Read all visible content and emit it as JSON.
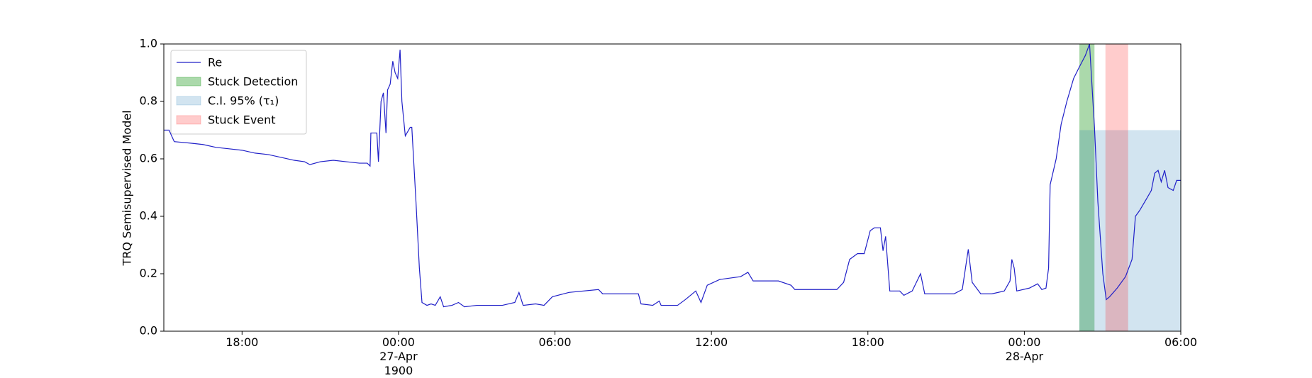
{
  "chart_data": {
    "type": "line",
    "ylabel": "TRQ Semisupervised Model",
    "xlim": [
      -9,
      30
    ],
    "ylim": [
      0,
      1
    ],
    "xticks": [
      {
        "value": -6,
        "label": "18:00"
      },
      {
        "value": 0,
        "label": "00:00\n27-Apr\n1900"
      },
      {
        "value": 6,
        "label": "06:00"
      },
      {
        "value": 12,
        "label": "12:00"
      },
      {
        "value": 18,
        "label": "18:00"
      },
      {
        "value": 24,
        "label": "00:00\n28-Apr"
      },
      {
        "value": 30,
        "label": "06:00"
      }
    ],
    "yticks": [
      {
        "value": 0,
        "label": "0.0"
      },
      {
        "value": 0.2,
        "label": "0.2"
      },
      {
        "value": 0.4,
        "label": "0.4"
      },
      {
        "value": 0.6,
        "label": "0.6"
      },
      {
        "value": 0.8,
        "label": "0.8"
      },
      {
        "value": 1,
        "label": "1.0"
      }
    ],
    "legend": "upper left",
    "series": [
      {
        "name": "Re",
        "color": "#2020c8",
        "x": [
          -9,
          -8.8,
          -8.6,
          -8,
          -7.5,
          -7,
          -6.5,
          -6,
          -5.5,
          -5,
          -4.5,
          -4,
          -3.6,
          -3.4,
          -3,
          -2.5,
          -2,
          -1.5,
          -1.2,
          -1.09,
          -1.06,
          -0.83,
          -0.77,
          -0.67,
          -0.58,
          -0.48,
          -0.42,
          -0.32,
          -0.22,
          -0.13,
          -0.03,
          0.06,
          0.13,
          0.26,
          0.45,
          0.51,
          0.67,
          0.8,
          0.9,
          1.09,
          1.25,
          1.41,
          1.6,
          1.73,
          2.05,
          2.3,
          2.53,
          3.0,
          3.98,
          4.46,
          4.62,
          4.78,
          5.26,
          5.58,
          5.9,
          6.54,
          7.67,
          7.83,
          9.2,
          9.3,
          9.75,
          10.0,
          10.07,
          10.7,
          11.0,
          11.4,
          11.6,
          11.84,
          12.32,
          13.12,
          13.4,
          13.6,
          14.57,
          15.05,
          15.2,
          16.81,
          17.07,
          17.3,
          17.6,
          17.86,
          18.09,
          18.25,
          18.48,
          18.58,
          18.68,
          18.84,
          19.06,
          19.22,
          19.38,
          19.7,
          19.86,
          20.02,
          20.18,
          20.66,
          21.3,
          21.62,
          21.85,
          22.0,
          22.33,
          22.75,
          23.23,
          23.45,
          23.52,
          23.61,
          23.71,
          24.19,
          24.51,
          24.67,
          24.83,
          24.93,
          24.99,
          25.22,
          25.41,
          25.63,
          25.89,
          26.11,
          26.34,
          26.5,
          26.63,
          26.69,
          26.82,
          27.01,
          27.14,
          27.27,
          27.56,
          27.88,
          28.13,
          28.26,
          28.42,
          28.68,
          28.87,
          29.0,
          29.13,
          29.25,
          29.38,
          29.51,
          29.71,
          29.84,
          30
        ],
        "values": [
          0.7,
          0.7,
          0.66,
          0.655,
          0.65,
          0.64,
          0.635,
          0.63,
          0.62,
          0.615,
          0.605,
          0.595,
          0.59,
          0.58,
          0.59,
          0.595,
          0.59,
          0.585,
          0.585,
          0.575,
          0.69,
          0.69,
          0.59,
          0.8,
          0.83,
          0.69,
          0.84,
          0.86,
          0.94,
          0.9,
          0.88,
          0.98,
          0.8,
          0.68,
          0.71,
          0.71,
          0.45,
          0.22,
          0.1,
          0.09,
          0.095,
          0.09,
          0.12,
          0.085,
          0.09,
          0.1,
          0.085,
          0.09,
          0.09,
          0.1,
          0.135,
          0.09,
          0.095,
          0.09,
          0.12,
          0.135,
          0.145,
          0.13,
          0.13,
          0.095,
          0.09,
          0.105,
          0.09,
          0.09,
          0.11,
          0.14,
          0.1,
          0.16,
          0.18,
          0.19,
          0.205,
          0.175,
          0.175,
          0.16,
          0.145,
          0.145,
          0.17,
          0.25,
          0.27,
          0.27,
          0.35,
          0.36,
          0.36,
          0.28,
          0.33,
          0.14,
          0.14,
          0.14,
          0.125,
          0.14,
          0.17,
          0.2,
          0.13,
          0.13,
          0.13,
          0.145,
          0.285,
          0.17,
          0.13,
          0.13,
          0.14,
          0.175,
          0.25,
          0.22,
          0.14,
          0.15,
          0.165,
          0.145,
          0.15,
          0.22,
          0.51,
          0.6,
          0.72,
          0.8,
          0.88,
          0.92,
          0.96,
          1.0,
          0.8,
          0.71,
          0.45,
          0.2,
          0.11,
          0.12,
          0.15,
          0.19,
          0.25,
          0.4,
          0.42,
          0.46,
          0.49,
          0.55,
          0.56,
          0.52,
          0.56,
          0.5,
          0.49,
          0.525,
          0.525
        ]
      }
    ],
    "spans": [
      {
        "name": "Stuck Detection",
        "color": "#2ca02c",
        "alpha": 0.4,
        "x": [
          26.11,
          26.69
        ],
        "y": [
          0,
          1
        ]
      },
      {
        "name": "C.I. 95% (τ₁)",
        "color": "#1f77b4",
        "alpha": 0.2,
        "x": [
          26.11,
          30
        ],
        "y": [
          0,
          0.7
        ]
      },
      {
        "name": "Stuck Event",
        "color": "#ff0000",
        "alpha": 0.2,
        "x": [
          27.11,
          27.98
        ],
        "y": [
          0,
          1
        ]
      }
    ]
  }
}
